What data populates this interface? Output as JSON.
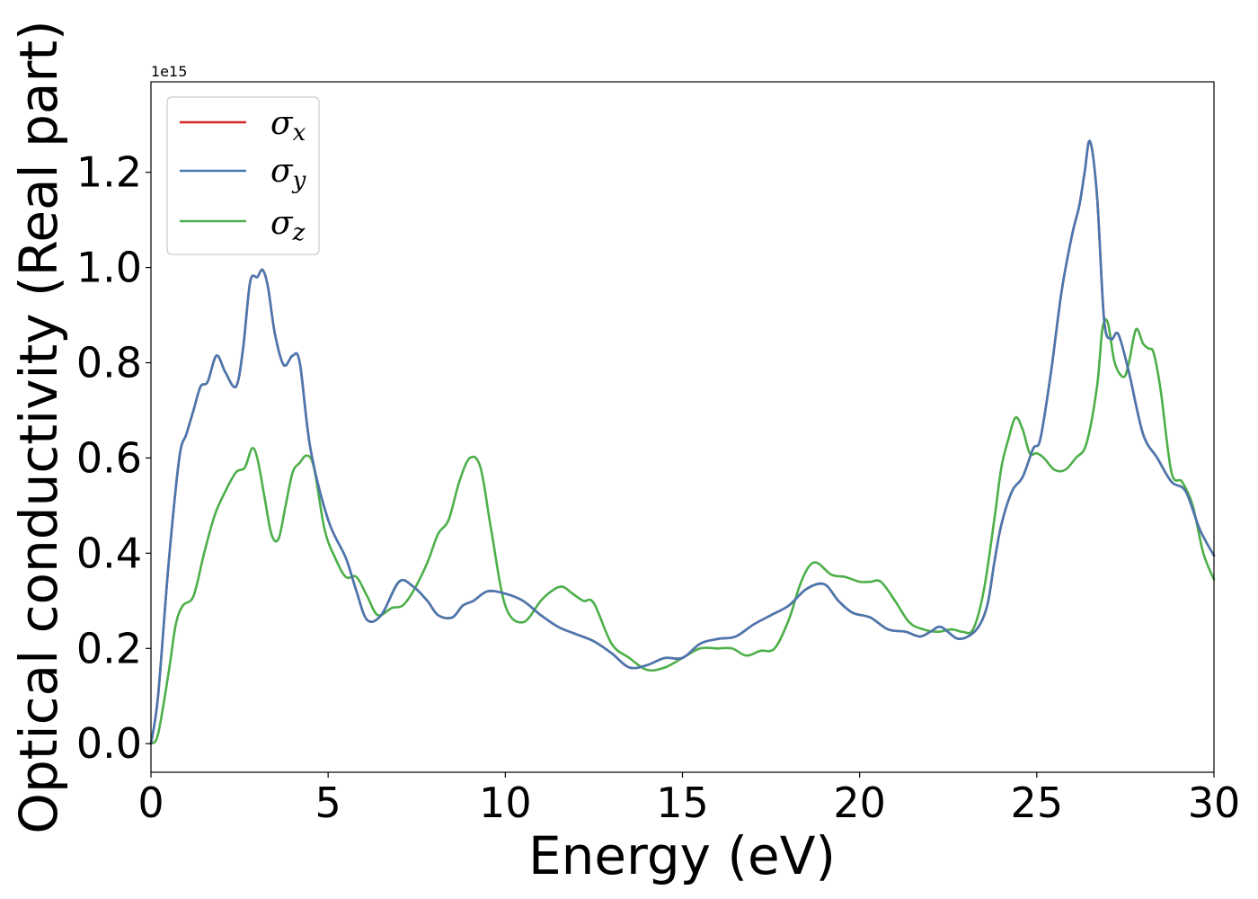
{
  "chart_data": {
    "type": "line",
    "xlabel": "Energy (eV)",
    "ylabel": "Optical conductivity (Real part)",
    "y_offset_label": "1e15",
    "xlim": [
      0,
      30
    ],
    "ylim": [
      -0.06,
      1.39
    ],
    "xticks": [
      0,
      5,
      10,
      15,
      20,
      25,
      30
    ],
    "xtick_labels": [
      "0",
      "5",
      "10",
      "15",
      "20",
      "25",
      "30"
    ],
    "yticks": [
      0.0,
      0.2,
      0.4,
      0.6,
      0.8,
      1.0,
      1.2
    ],
    "ytick_labels": [
      "0.0",
      "0.2",
      "0.4",
      "0.6",
      "0.8",
      "1.0",
      "1.2"
    ],
    "grid": false,
    "legend_position": "top-left",
    "series": [
      {
        "name": "σx",
        "name_main": "σ",
        "name_sub": "x",
        "color": "#d62728",
        "x": [
          0,
          0.2,
          0.5,
          0.8,
          1.0,
          1.2,
          1.4,
          1.6,
          1.85,
          2.1,
          2.4,
          2.6,
          2.8,
          3.0,
          3.15,
          3.3,
          3.5,
          3.75,
          4.0,
          4.2,
          4.5,
          5.0,
          5.5,
          5.8,
          6.1,
          6.5,
          7.0,
          7.4,
          7.8,
          8.1,
          8.5,
          8.8,
          9.1,
          9.5,
          10.0,
          10.5,
          11.0,
          11.5,
          12.0,
          12.5,
          13.0,
          13.5,
          14.0,
          14.5,
          15.0,
          15.5,
          16.0,
          16.5,
          17.0,
          17.5,
          18.0,
          18.5,
          19.0,
          19.4,
          19.8,
          20.3,
          20.8,
          21.3,
          21.7,
          22.0,
          22.3,
          22.8,
          23.3,
          23.6,
          23.8,
          24.0,
          24.3,
          24.6,
          24.9,
          25.1,
          25.4,
          25.7,
          26.0,
          26.2,
          26.35,
          26.5,
          26.7,
          26.9,
          27.1,
          27.3,
          27.6,
          28.0,
          28.4,
          28.8,
          29.2,
          29.6,
          30.0
        ],
        "values": [
          0.0,
          0.1,
          0.38,
          0.6,
          0.65,
          0.7,
          0.75,
          0.76,
          0.815,
          0.78,
          0.75,
          0.83,
          0.97,
          0.98,
          0.995,
          0.96,
          0.86,
          0.795,
          0.815,
          0.8,
          0.62,
          0.47,
          0.39,
          0.32,
          0.26,
          0.27,
          0.34,
          0.33,
          0.3,
          0.27,
          0.265,
          0.29,
          0.3,
          0.32,
          0.315,
          0.3,
          0.27,
          0.245,
          0.23,
          0.215,
          0.19,
          0.16,
          0.165,
          0.18,
          0.18,
          0.21,
          0.22,
          0.225,
          0.25,
          0.27,
          0.29,
          0.325,
          0.335,
          0.3,
          0.275,
          0.265,
          0.24,
          0.235,
          0.225,
          0.235,
          0.245,
          0.22,
          0.24,
          0.29,
          0.38,
          0.46,
          0.53,
          0.56,
          0.62,
          0.64,
          0.78,
          0.95,
          1.07,
          1.13,
          1.2,
          1.265,
          1.15,
          0.89,
          0.85,
          0.86,
          0.78,
          0.65,
          0.6,
          0.55,
          0.53,
          0.45,
          0.395
        ]
      },
      {
        "name": "σy",
        "name_main": "σ",
        "name_sub": "y",
        "color": "#4878b0",
        "x": [
          0,
          0.2,
          0.5,
          0.8,
          1.0,
          1.2,
          1.4,
          1.6,
          1.85,
          2.1,
          2.4,
          2.6,
          2.8,
          3.0,
          3.15,
          3.3,
          3.5,
          3.75,
          4.0,
          4.2,
          4.5,
          5.0,
          5.5,
          5.8,
          6.1,
          6.5,
          7.0,
          7.4,
          7.8,
          8.1,
          8.5,
          8.8,
          9.1,
          9.5,
          10.0,
          10.5,
          11.0,
          11.5,
          12.0,
          12.5,
          13.0,
          13.5,
          14.0,
          14.5,
          15.0,
          15.5,
          16.0,
          16.5,
          17.0,
          17.5,
          18.0,
          18.5,
          19.0,
          19.4,
          19.8,
          20.3,
          20.8,
          21.3,
          21.7,
          22.0,
          22.3,
          22.8,
          23.3,
          23.6,
          23.8,
          24.0,
          24.3,
          24.6,
          24.9,
          25.1,
          25.4,
          25.7,
          26.0,
          26.2,
          26.35,
          26.5,
          26.7,
          26.9,
          27.1,
          27.3,
          27.6,
          28.0,
          28.4,
          28.8,
          29.2,
          29.6,
          30.0
        ],
        "values": [
          0.0,
          0.1,
          0.38,
          0.6,
          0.65,
          0.7,
          0.75,
          0.76,
          0.815,
          0.78,
          0.75,
          0.83,
          0.97,
          0.98,
          0.995,
          0.96,
          0.86,
          0.795,
          0.815,
          0.8,
          0.62,
          0.47,
          0.39,
          0.32,
          0.26,
          0.27,
          0.34,
          0.33,
          0.3,
          0.27,
          0.265,
          0.29,
          0.3,
          0.32,
          0.315,
          0.3,
          0.27,
          0.245,
          0.23,
          0.215,
          0.19,
          0.16,
          0.165,
          0.18,
          0.18,
          0.21,
          0.22,
          0.225,
          0.25,
          0.27,
          0.29,
          0.325,
          0.335,
          0.3,
          0.275,
          0.265,
          0.24,
          0.235,
          0.225,
          0.235,
          0.245,
          0.22,
          0.24,
          0.29,
          0.38,
          0.46,
          0.53,
          0.56,
          0.62,
          0.64,
          0.78,
          0.95,
          1.07,
          1.13,
          1.2,
          1.265,
          1.15,
          0.89,
          0.85,
          0.86,
          0.78,
          0.65,
          0.6,
          0.55,
          0.53,
          0.45,
          0.395
        ]
      },
      {
        "name": "σz",
        "name_main": "σ",
        "name_sub": "z",
        "color": "#4daf4a",
        "x": [
          0,
          0.2,
          0.5,
          0.7,
          0.9,
          1.2,
          1.5,
          1.8,
          2.1,
          2.4,
          2.65,
          2.85,
          3.0,
          3.2,
          3.4,
          3.6,
          3.8,
          4.0,
          4.2,
          4.4,
          4.6,
          4.9,
          5.2,
          5.5,
          5.8,
          6.1,
          6.4,
          6.8,
          7.1,
          7.4,
          7.8,
          8.1,
          8.4,
          8.7,
          9.0,
          9.3,
          9.6,
          10.0,
          10.5,
          11.0,
          11.3,
          11.6,
          11.9,
          12.2,
          12.5,
          13.0,
          13.5,
          14.0,
          14.5,
          15.0,
          15.5,
          16.0,
          16.4,
          16.8,
          17.2,
          17.6,
          18.0,
          18.3,
          18.55,
          18.8,
          19.2,
          19.6,
          20.0,
          20.3,
          20.6,
          21.0,
          21.4,
          21.8,
          22.2,
          22.6,
          22.9,
          23.2,
          23.5,
          23.8,
          24.0,
          24.2,
          24.4,
          24.6,
          24.8,
          25.0,
          25.2,
          25.5,
          25.8,
          26.1,
          26.4,
          26.7,
          26.85,
          27.0,
          27.2,
          27.45,
          27.6,
          27.8,
          28.0,
          28.15,
          28.3,
          28.5,
          28.8,
          29.1,
          29.4,
          29.7,
          30.0
        ],
        "values": [
          0.0,
          0.02,
          0.15,
          0.25,
          0.29,
          0.31,
          0.4,
          0.48,
          0.53,
          0.57,
          0.58,
          0.62,
          0.6,
          0.52,
          0.44,
          0.43,
          0.5,
          0.57,
          0.59,
          0.605,
          0.58,
          0.45,
          0.39,
          0.35,
          0.35,
          0.31,
          0.27,
          0.285,
          0.29,
          0.32,
          0.38,
          0.44,
          0.47,
          0.55,
          0.6,
          0.58,
          0.45,
          0.29,
          0.255,
          0.3,
          0.32,
          0.33,
          0.315,
          0.3,
          0.295,
          0.21,
          0.18,
          0.155,
          0.16,
          0.18,
          0.2,
          0.2,
          0.2,
          0.185,
          0.195,
          0.2,
          0.26,
          0.33,
          0.37,
          0.38,
          0.355,
          0.35,
          0.34,
          0.34,
          0.34,
          0.3,
          0.255,
          0.24,
          0.235,
          0.24,
          0.235,
          0.24,
          0.32,
          0.47,
          0.58,
          0.64,
          0.685,
          0.66,
          0.61,
          0.61,
          0.6,
          0.575,
          0.575,
          0.6,
          0.63,
          0.75,
          0.87,
          0.885,
          0.8,
          0.77,
          0.8,
          0.87,
          0.84,
          0.83,
          0.82,
          0.74,
          0.57,
          0.55,
          0.5,
          0.4,
          0.345
        ]
      }
    ]
  }
}
